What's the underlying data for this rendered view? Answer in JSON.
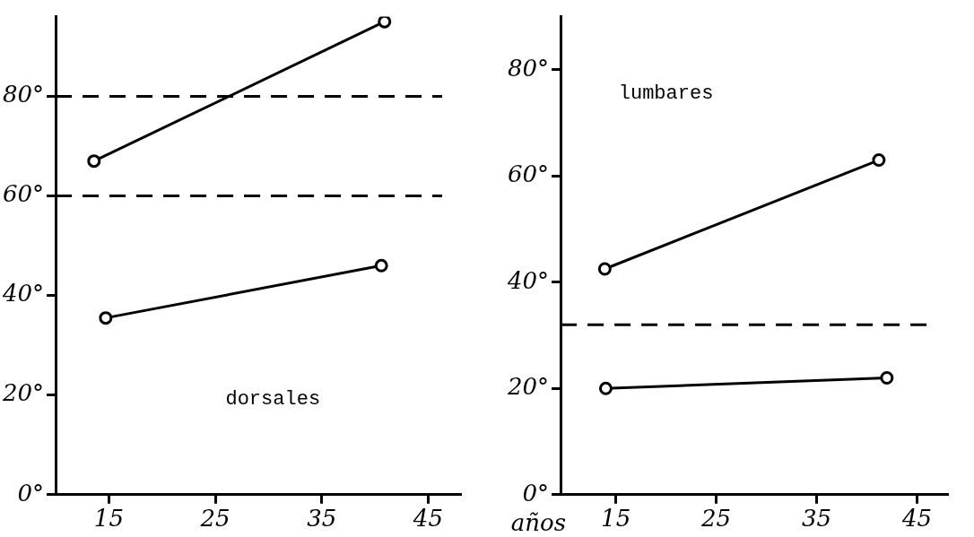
{
  "chart_data": [
    {
      "type": "line",
      "annotations": [
        "dorsales"
      ],
      "xlim": [
        10,
        48
      ],
      "xticks": [
        15,
        25,
        35,
        45
      ],
      "ylim": [
        0,
        96
      ],
      "yticks": [
        {
          "value": 0,
          "label": "0°"
        },
        {
          "value": 20,
          "label": "20°"
        },
        {
          "value": 40,
          "label": "40°"
        },
        {
          "value": 60,
          "label": "60°"
        },
        {
          "value": 80,
          "label": "80°"
        }
      ],
      "series": [
        {
          "color": "#000000",
          "x": [
            13.6,
            40.9
          ],
          "values": [
            67,
            95
          ]
        },
        {
          "color": "#000000",
          "x": [
            14.7,
            40.6
          ],
          "values": [
            35.5,
            46
          ]
        }
      ],
      "ref_lines": [
        {
          "axis": "y",
          "value": 80,
          "line_style": "dashed",
          "color": "#000000"
        },
        {
          "axis": "y",
          "value": 60,
          "line_style": "dashed",
          "color": "#000000"
        }
      ],
      "grid": false,
      "legend": false,
      "marker": "circle",
      "line_style": "solid"
    },
    {
      "type": "line",
      "annotations": [
        "lumbares"
      ],
      "xlabel": "años",
      "xlim": [
        9.5,
        48
      ],
      "xticks": [
        15,
        25,
        35,
        45
      ],
      "ylim": [
        0,
        90
      ],
      "yticks": [
        {
          "value": 0,
          "label": "0°"
        },
        {
          "value": 20,
          "label": "20°"
        },
        {
          "value": 40,
          "label": "40°"
        },
        {
          "value": 60,
          "label": "60°"
        },
        {
          "value": 80,
          "label": "80°"
        }
      ],
      "series": [
        {
          "color": "#000000",
          "x": [
            13.9,
            41.2
          ],
          "values": [
            42.5,
            63
          ]
        },
        {
          "color": "#000000",
          "x": [
            14,
            42
          ],
          "values": [
            20,
            22
          ]
        }
      ],
      "ref_lines": [
        {
          "axis": "y",
          "value": 32,
          "line_style": "dashed",
          "color": "#000000"
        }
      ],
      "grid": false,
      "legend": false,
      "marker": "circle",
      "line_style": "solid"
    }
  ]
}
